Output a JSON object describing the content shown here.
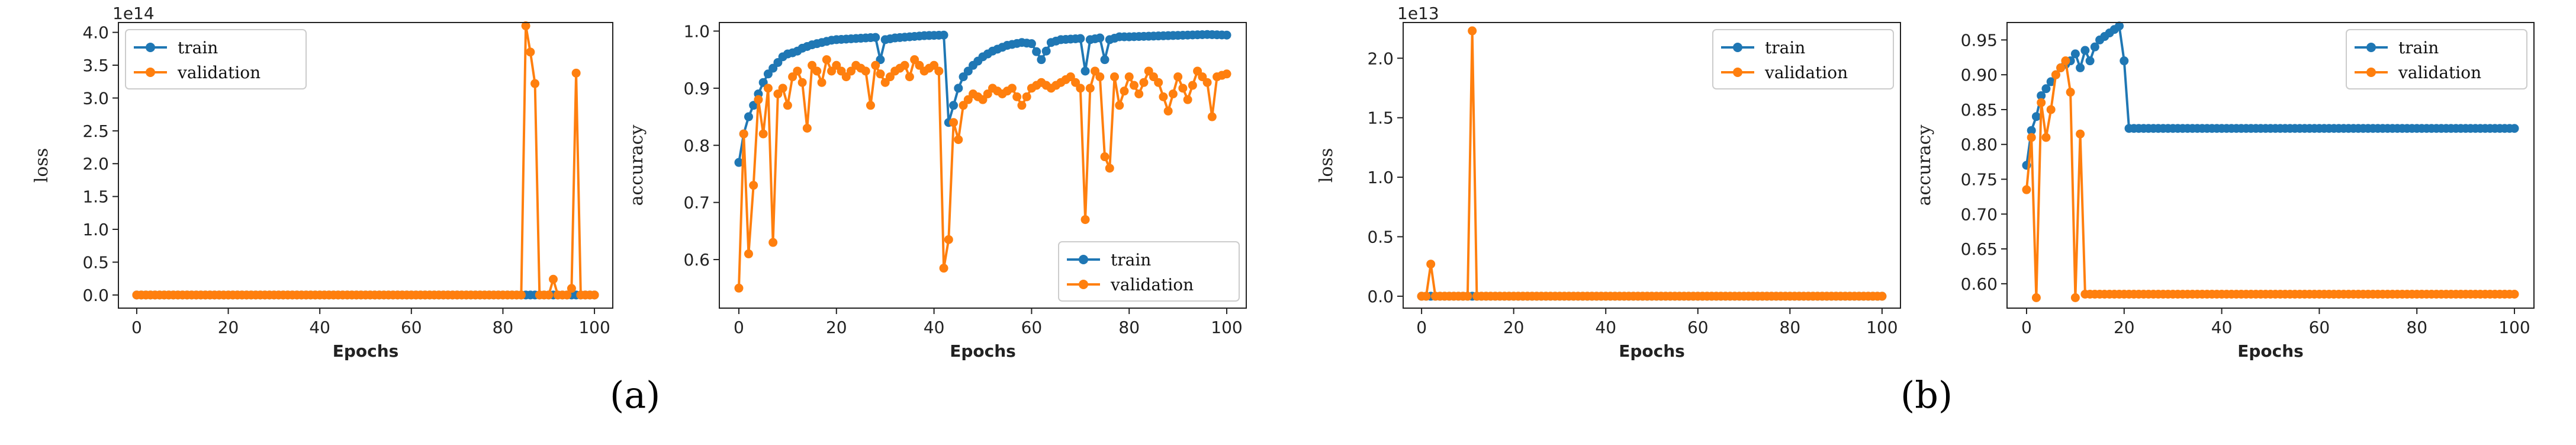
{
  "colors": {
    "train": "#1f77b4",
    "validation": "#ff7f0e",
    "axis": "#222222"
  },
  "panel_labels": [
    "(a)",
    "(b)"
  ],
  "chart_data": [
    {
      "type": "line",
      "xlabel": "Epochs",
      "ylabel": "loss",
      "offset_text": "1e14",
      "xlim": [
        -4,
        104
      ],
      "ylim": [
        -0.2,
        4.15
      ],
      "xticks": [
        "0",
        "20",
        "40",
        "60",
        "80",
        "100"
      ],
      "yticks": [
        "0.0",
        "0.5",
        "1.0",
        "1.5",
        "2.0",
        "2.5",
        "3.0",
        "3.5",
        "4.0"
      ],
      "ytick_values": [
        0,
        0.5,
        1,
        1.5,
        2,
        2.5,
        3,
        3.5,
        4
      ],
      "legend": "top-left",
      "series": [
        {
          "name": "train",
          "points": [
            [
              0,
              0
            ],
            [
              85,
              0
            ],
            [
              86,
              0
            ],
            [
              100,
              0
            ]
          ]
        },
        {
          "name": "validation",
          "points": [
            [
              0,
              0
            ],
            [
              84,
              0
            ],
            [
              85,
              4.1
            ],
            [
              86,
              3.7
            ],
            [
              87,
              3.22
            ],
            [
              88,
              0
            ],
            [
              90,
              0
            ],
            [
              91,
              0.24
            ],
            [
              92,
              0
            ],
            [
              93,
              0
            ],
            [
              94,
              0
            ],
            [
              95,
              0.1
            ],
            [
              96,
              3.38
            ],
            [
              97,
              0
            ],
            [
              100,
              0
            ]
          ]
        }
      ]
    },
    {
      "type": "line",
      "xlabel": "Epochs",
      "ylabel": "accuracy",
      "xlim": [
        -4,
        104
      ],
      "ylim": [
        0.515,
        1.015
      ],
      "xticks": [
        "0",
        "20",
        "40",
        "60",
        "80",
        "100"
      ],
      "yticks": [
        "0.6",
        "0.7",
        "0.8",
        "0.9",
        "1.0"
      ],
      "ytick_values": [
        0.6,
        0.7,
        0.8,
        0.9,
        1.0
      ],
      "legend": "bottom-right",
      "series": [
        {
          "name": "train",
          "points": [
            [
              0,
              0.77
            ],
            [
              1,
              0.82
            ],
            [
              2,
              0.85
            ],
            [
              3,
              0.87
            ],
            [
              4,
              0.89
            ],
            [
              5,
              0.91
            ],
            [
              6,
              0.925
            ],
            [
              7,
              0.935
            ],
            [
              8,
              0.945
            ],
            [
              9,
              0.955
            ],
            [
              10,
              0.96
            ],
            [
              11,
              0.962
            ],
            [
              12,
              0.965
            ],
            [
              13,
              0.97
            ],
            [
              14,
              0.973
            ],
            [
              15,
              0.976
            ],
            [
              16,
              0.978
            ],
            [
              17,
              0.98
            ],
            [
              18,
              0.982
            ],
            [
              19,
              0.984
            ],
            [
              20,
              0.985
            ],
            [
              22,
              0.986
            ],
            [
              24,
              0.987
            ],
            [
              26,
              0.988
            ],
            [
              28,
              0.989
            ],
            [
              29,
              0.95
            ],
            [
              30,
              0.985
            ],
            [
              32,
              0.988
            ],
            [
              35,
              0.99
            ],
            [
              38,
              0.992
            ],
            [
              42,
              0.993
            ],
            [
              43,
              0.84
            ],
            [
              44,
              0.87
            ],
            [
              45,
              0.9
            ],
            [
              46,
              0.92
            ],
            [
              48,
              0.94
            ],
            [
              50,
              0.955
            ],
            [
              52,
              0.965
            ],
            [
              55,
              0.975
            ],
            [
              58,
              0.98
            ],
            [
              60,
              0.978
            ],
            [
              62,
              0.95
            ],
            [
              64,
              0.98
            ],
            [
              66,
              0.985
            ],
            [
              68,
              0.986
            ],
            [
              70,
              0.987
            ],
            [
              71,
              0.93
            ],
            [
              72,
              0.985
            ],
            [
              74,
              0.988
            ],
            [
              75,
              0.95
            ],
            [
              76,
              0.985
            ],
            [
              78,
              0.99
            ],
            [
              80,
              0.99
            ],
            [
              84,
              0.991
            ],
            [
              88,
              0.992
            ],
            [
              92,
              0.993
            ],
            [
              96,
              0.994
            ],
            [
              100,
              0.993
            ]
          ]
        },
        {
          "name": "validation",
          "points": [
            [
              0,
              0.55
            ],
            [
              1,
              0.82
            ],
            [
              2,
              0.61
            ],
            [
              3,
              0.73
            ],
            [
              4,
              0.88
            ],
            [
              5,
              0.82
            ],
            [
              6,
              0.9
            ],
            [
              7,
              0.63
            ],
            [
              8,
              0.89
            ],
            [
              9,
              0.9
            ],
            [
              10,
              0.87
            ],
            [
              11,
              0.92
            ],
            [
              12,
              0.93
            ],
            [
              13,
              0.91
            ],
            [
              14,
              0.83
            ],
            [
              15,
              0.94
            ],
            [
              16,
              0.93
            ],
            [
              17,
              0.91
            ],
            [
              18,
              0.95
            ],
            [
              19,
              0.93
            ],
            [
              20,
              0.94
            ],
            [
              22,
              0.92
            ],
            [
              24,
              0.94
            ],
            [
              26,
              0.93
            ],
            [
              27,
              0.87
            ],
            [
              28,
              0.94
            ],
            [
              30,
              0.91
            ],
            [
              32,
              0.93
            ],
            [
              34,
              0.94
            ],
            [
              35,
              0.92
            ],
            [
              36,
              0.95
            ],
            [
              38,
              0.93
            ],
            [
              40,
              0.94
            ],
            [
              41,
              0.93
            ],
            [
              42,
              0.585
            ],
            [
              43,
              0.635
            ],
            [
              44,
              0.84
            ],
            [
              45,
              0.81
            ],
            [
              46,
              0.87
            ],
            [
              48,
              0.89
            ],
            [
              50,
              0.88
            ],
            [
              52,
              0.9
            ],
            [
              54,
              0.89
            ],
            [
              56,
              0.9
            ],
            [
              58,
              0.87
            ],
            [
              60,
              0.9
            ],
            [
              62,
              0.91
            ],
            [
              64,
              0.9
            ],
            [
              66,
              0.91
            ],
            [
              68,
              0.92
            ],
            [
              70,
              0.9
            ],
            [
              71,
              0.67
            ],
            [
              72,
              0.9
            ],
            [
              73,
              0.93
            ],
            [
              74,
              0.92
            ],
            [
              75,
              0.78
            ],
            [
              76,
              0.76
            ],
            [
              77,
              0.92
            ],
            [
              78,
              0.87
            ],
            [
              80,
              0.92
            ],
            [
              82,
              0.89
            ],
            [
              84,
              0.93
            ],
            [
              86,
              0.91
            ],
            [
              88,
              0.86
            ],
            [
              90,
              0.92
            ],
            [
              92,
              0.88
            ],
            [
              94,
              0.93
            ],
            [
              96,
              0.91
            ],
            [
              97,
              0.85
            ],
            [
              98,
              0.92
            ],
            [
              100,
              0.925
            ]
          ]
        }
      ]
    },
    {
      "type": "line",
      "xlabel": "Epochs",
      "ylabel": "loss",
      "offset_text": "1e13",
      "xlim": [
        -4,
        104
      ],
      "ylim": [
        -0.1,
        2.3
      ],
      "xticks": [
        "0",
        "20",
        "40",
        "60",
        "80",
        "100"
      ],
      "yticks": [
        "0.0",
        "0.5",
        "1.0",
        "1.5",
        "2.0"
      ],
      "ytick_values": [
        0,
        0.5,
        1,
        1.5,
        2
      ],
      "legend": "top-right",
      "series": [
        {
          "name": "train",
          "points": [
            [
              0,
              0
            ],
            [
              100,
              0
            ]
          ]
        },
        {
          "name": "validation",
          "points": [
            [
              0,
              0
            ],
            [
              1,
              0
            ],
            [
              2,
              0.27
            ],
            [
              3,
              0
            ],
            [
              9,
              0
            ],
            [
              10,
              0
            ],
            [
              11,
              2.23
            ],
            [
              12,
              0
            ],
            [
              100,
              0
            ]
          ]
        }
      ]
    },
    {
      "type": "line",
      "xlabel": "Epochs",
      "ylabel": "accuracy",
      "xlim": [
        -4,
        104
      ],
      "ylim": [
        0.565,
        0.975
      ],
      "xticks": [
        "0",
        "20",
        "40",
        "60",
        "80",
        "100"
      ],
      "yticks": [
        "0.60",
        "0.65",
        "0.70",
        "0.75",
        "0.80",
        "0.85",
        "0.90",
        "0.95"
      ],
      "ytick_values": [
        0.6,
        0.65,
        0.7,
        0.75,
        0.8,
        0.85,
        0.9,
        0.95
      ],
      "legend": "top-right",
      "series": [
        {
          "name": "train",
          "points": [
            [
              0,
              0.77
            ],
            [
              1,
              0.82
            ],
            [
              2,
              0.84
            ],
            [
              3,
              0.87
            ],
            [
              4,
              0.88
            ],
            [
              5,
              0.89
            ],
            [
              6,
              0.9
            ],
            [
              7,
              0.91
            ],
            [
              8,
              0.915
            ],
            [
              9,
              0.92
            ],
            [
              10,
              0.93
            ],
            [
              11,
              0.91
            ],
            [
              12,
              0.935
            ],
            [
              13,
              0.92
            ],
            [
              14,
              0.94
            ],
            [
              15,
              0.95
            ],
            [
              16,
              0.955
            ],
            [
              17,
              0.96
            ],
            [
              18,
              0.965
            ],
            [
              19,
              0.97
            ],
            [
              20,
              0.92
            ],
            [
              21,
              0.823
            ],
            [
              30,
              0.823
            ],
            [
              40,
              0.823
            ],
            [
              50,
              0.823
            ],
            [
              60,
              0.823
            ],
            [
              70,
              0.823
            ],
            [
              80,
              0.823
            ],
            [
              90,
              0.823
            ],
            [
              100,
              0.823
            ]
          ]
        },
        {
          "name": "validation",
          "points": [
            [
              0,
              0.735
            ],
            [
              1,
              0.81
            ],
            [
              2,
              0.58
            ],
            [
              3,
              0.86
            ],
            [
              4,
              0.81
            ],
            [
              5,
              0.85
            ],
            [
              6,
              0.9
            ],
            [
              7,
              0.91
            ],
            [
              8,
              0.92
            ],
            [
              9,
              0.875
            ],
            [
              10,
              0.58
            ],
            [
              11,
              0.815
            ],
            [
              12,
              0.585
            ],
            [
              13,
              0.585
            ],
            [
              14,
              0.585
            ],
            [
              20,
              0.585
            ],
            [
              40,
              0.585
            ],
            [
              60,
              0.585
            ],
            [
              80,
              0.585
            ],
            [
              100,
              0.585
            ]
          ]
        }
      ]
    }
  ]
}
